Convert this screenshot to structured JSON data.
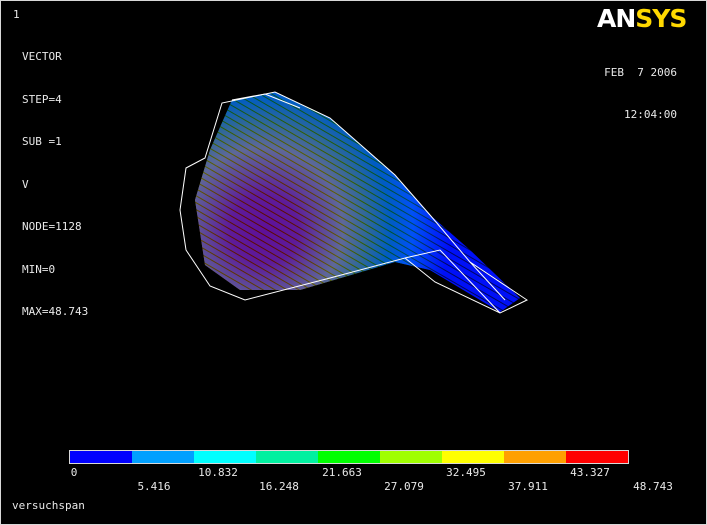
{
  "window_number": "1",
  "info_lines": [
    "VECTOR",
    "STEP=4",
    "SUB =1",
    "V",
    "NODE=1128",
    "MIN=0",
    "MAX=48.743"
  ],
  "logo": {
    "an": "AN",
    "sys": "SYS"
  },
  "date": "FEB  7 2006",
  "time": "12:04:00",
  "legend": {
    "colors": [
      "#0000ff",
      "#00a0ff",
      "#00ffff",
      "#00f0a0",
      "#00ff00",
      "#a0ff00",
      "#ffff00",
      "#ffa000",
      "#ff0000"
    ],
    "top_labels": [
      "0",
      "10.832",
      "21.663",
      "32.495",
      "43.327"
    ],
    "bottom_labels": [
      "5.416",
      "16.248",
      "27.079",
      "37.911",
      "48.743"
    ]
  },
  "footer": "versuchspan",
  "accent_colors": {
    "outline": "#ffffff",
    "logo_yellow": "#ffd800"
  }
}
